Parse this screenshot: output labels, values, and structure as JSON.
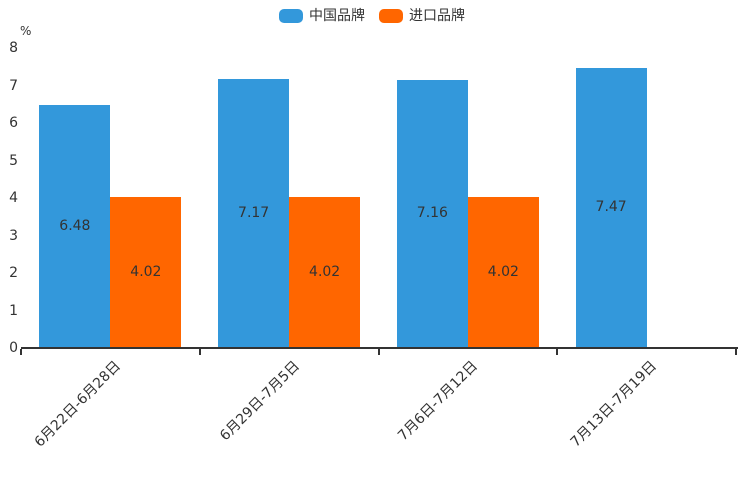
{
  "chart_data": {
    "type": "bar",
    "title": "",
    "xlabel": "",
    "ylabel": "%",
    "ylim": [
      0,
      8
    ],
    "yticks": [
      0,
      1,
      2,
      3,
      4,
      5,
      6,
      7,
      8
    ],
    "grid": false,
    "legend_position": "top-center",
    "label_position": "inside-center",
    "categories": [
      "6月22日-6月28日",
      "6月29日-7月5日",
      "7月6日-7月12日",
      "7月13日-7月19日"
    ],
    "series": [
      {
        "name": "中国品牌",
        "color": "#3398DB",
        "values": [
          6.48,
          7.17,
          7.16,
          7.47
        ]
      },
      {
        "name": "进口品牌",
        "color": "#FF6600",
        "values": [
          4.02,
          4.02,
          4.02,
          null
        ]
      }
    ],
    "value_label_color": "#333333",
    "axis_color": "#333333",
    "background_color": "#ffffff"
  }
}
